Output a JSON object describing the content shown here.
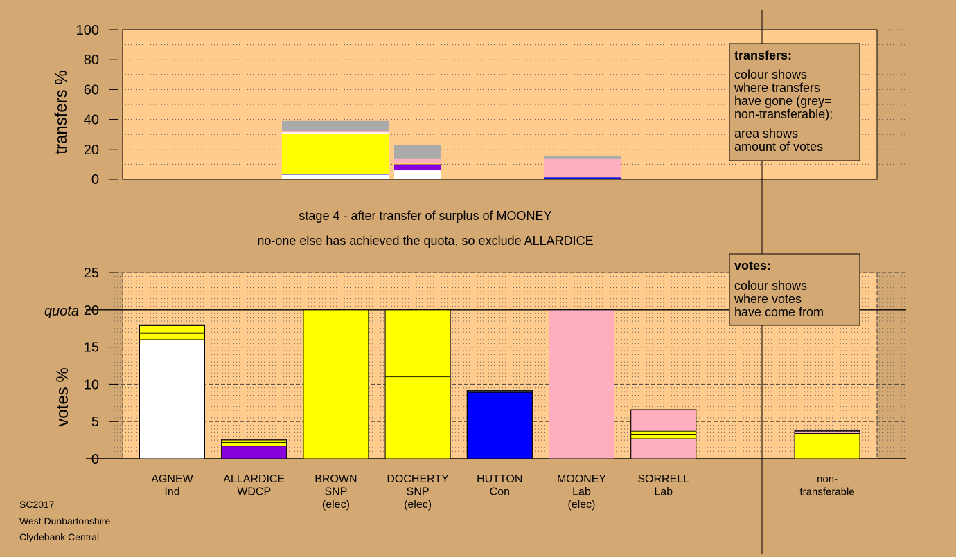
{
  "chart_data": [
    {
      "type": "bar",
      "stacked": true,
      "ylabel": "transfers %",
      "ylim": [
        0,
        100
      ],
      "yticks": [
        0,
        20,
        40,
        60,
        80,
        100
      ],
      "grid": "dotted",
      "legend": {
        "placement": "top-right",
        "title": "transfers:",
        "lines1": [
          "colour shows",
          "where transfers",
          "have gone (grey=",
          "non-transferable);"
        ],
        "lines2": [
          "area shows",
          "amount of votes"
        ]
      },
      "bars": [
        {
          "candidate": "BROWN",
          "segments": [
            {
              "color": "#ffffff",
              "value": 3
            },
            {
              "color": "#2222cc",
              "value": 0.6
            },
            {
              "color": "#ffff00",
              "value": 27
            },
            {
              "color": "#ffffff",
              "value": 0.8
            },
            {
              "color": "#ffaec0",
              "value": 1
            },
            {
              "color": "#aaaaaa",
              "value": 6.6
            }
          ]
        },
        {
          "candidate": "DOCHERTY",
          "segments": [
            {
              "color": "#ffffff",
              "value": 6
            },
            {
              "color": "#8800dd",
              "value": 4
            },
            {
              "color": "#ffff00",
              "value": 0.5
            },
            {
              "color": "#ffaec0",
              "value": 3
            },
            {
              "color": "#aaaaaa",
              "value": 9.5
            }
          ]
        },
        {
          "candidate": "MOONEY",
          "segments": [
            {
              "color": "#1111dd",
              "value": 1.3
            },
            {
              "color": "#ffaec0",
              "value": 12.2
            },
            {
              "color": "#aaaaaa",
              "value": 2
            }
          ]
        }
      ]
    },
    {
      "type": "bar",
      "stacked": true,
      "ylabel": "votes %",
      "ylim": [
        0,
        25
      ],
      "yticks": [
        0,
        5,
        10,
        15,
        20,
        25
      ],
      "quota": 20,
      "quota_label": "quota",
      "legend": {
        "placement": "top-right",
        "title": "votes:",
        "lines": [
          "colour shows",
          "where votes",
          "have come from"
        ]
      },
      "bars": [
        {
          "name": "AGNEW",
          "party": "Ind",
          "status": "",
          "segments": [
            {
              "color": "#ffffff",
              "value": 16
            },
            {
              "color": "#ffff00",
              "value": 0.9
            },
            {
              "color": "#ffff00",
              "value": 0.8
            },
            {
              "color": "#ffff00",
              "value": 0.2
            },
            {
              "color": "#ffaec0",
              "value": 0.1
            }
          ]
        },
        {
          "name": "ALLARDICE",
          "party": "WDCP",
          "status": "",
          "segments": [
            {
              "color": "#8800dd",
              "value": 1.7
            },
            {
              "color": "#ffff00",
              "value": 0.5
            },
            {
              "color": "#ffff00",
              "value": 0.3
            },
            {
              "color": "#ffaec0",
              "value": 0.1
            }
          ]
        },
        {
          "name": "BROWN",
          "party": "SNP",
          "status": "(elec)",
          "segments": [
            {
              "color": "#ffff00",
              "value": 20
            }
          ]
        },
        {
          "name": "DOCHERTY",
          "party": "SNP",
          "status": "(elec)",
          "segments": [
            {
              "color": "#ffff00",
              "value": 11
            },
            {
              "color": "#ffff00",
              "value": 9
            }
          ]
        },
        {
          "name": "HUTTON",
          "party": "Con",
          "status": "",
          "segments": [
            {
              "color": "#0000ff",
              "value": 8.9
            },
            {
              "color": "#333333",
              "value": 0.3
            }
          ]
        },
        {
          "name": "MOONEY",
          "party": "Lab",
          "status": "(elec)",
          "segments": [
            {
              "color": "#ffaec0",
              "value": 20
            }
          ]
        },
        {
          "name": "SORRELL",
          "party": "Lab",
          "status": "",
          "segments": [
            {
              "color": "#ffaec0",
              "value": 2.7
            },
            {
              "color": "#ffff00",
              "value": 0.6
            },
            {
              "color": "#ffff00",
              "value": 0.4
            },
            {
              "color": "#ffaec0",
              "value": 2.9
            }
          ]
        },
        {
          "name": "",
          "party": "",
          "status": "",
          "segments": []
        },
        {
          "name": "non-",
          "party": "transferable",
          "status": "",
          "segments": [
            {
              "color": "#ffff00",
              "value": 2
            },
            {
              "color": "#ffff00",
              "value": 1.4
            },
            {
              "color": "#ffaec0",
              "value": 0.3
            },
            {
              "color": "#9966cc",
              "value": 0.1
            }
          ]
        }
      ]
    }
  ],
  "stage_text": "stage 4 - after transfer of surplus of MOONEY",
  "action_text": "no-one else has achieved the quota, so exclude ALLARDICE",
  "footer": [
    "SC2017",
    "West Dunbartonshire",
    "Clydebank Central"
  ],
  "colors": {
    "background": "#d4a873",
    "plot_area": "#ffcc8e",
    "legend_box": "#d4a873"
  }
}
